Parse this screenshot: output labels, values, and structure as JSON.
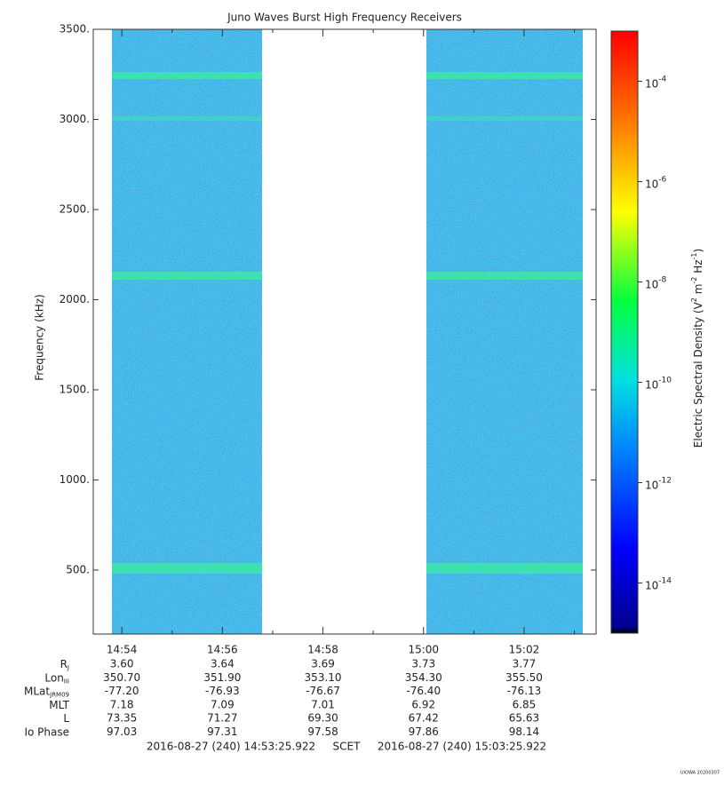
{
  "chart_data": {
    "type": "spectrogram",
    "title": "Juno Waves Burst High Frequency Receivers",
    "y_label": "Frequency (kHz)",
    "ylim": [
      145,
      3500
    ],
    "yticks": [
      {
        "value": 500,
        "label": "500."
      },
      {
        "value": 1000,
        "label": "1000."
      },
      {
        "value": 1500,
        "label": "1500."
      },
      {
        "value": 2000,
        "label": "2000."
      },
      {
        "value": 2500,
        "label": "2500."
      },
      {
        "value": 3000,
        "label": "3000."
      },
      {
        "value": 3500,
        "label": "3500."
      }
    ],
    "xticks": [
      "14:54",
      "14:56",
      "14:58",
      "15:00",
      "15:02"
    ],
    "colorbar": {
      "label": [
        "Electric Spectral Density (V",
        "2",
        " m",
        "-2",
        " Hz",
        "-1",
        ")"
      ],
      "base": "10",
      "clim": [
        -15,
        -3
      ],
      "ticks": [
        -14,
        -12,
        -10,
        -8,
        -6,
        -4
      ]
    },
    "ephemeris": [
      {
        "label": "R",
        "sub": "J",
        "values": [
          "3.60",
          "3.64",
          "3.69",
          "3.73",
          "3.77"
        ]
      },
      {
        "label": "Lon",
        "sub": "III",
        "values": [
          "350.70",
          "351.90",
          "353.10",
          "354.30",
          "355.50"
        ]
      },
      {
        "label": "MLat",
        "sub": "JRM09",
        "values": [
          "-77.20",
          "-76.93",
          "-76.67",
          "-76.40",
          "-76.13"
        ]
      },
      {
        "label": "MLT",
        "values": [
          "7.18",
          "7.09",
          "7.01",
          "6.92",
          "6.85"
        ]
      },
      {
        "label": "L",
        "values": [
          "73.35",
          "71.27",
          "69.30",
          "67.42",
          "65.63"
        ]
      },
      {
        "label": "Io Phase",
        "values": [
          "97.03",
          "97.31",
          "97.58",
          "97.86",
          "98.14"
        ]
      }
    ],
    "start": "2016-08-27 (240) 14:53:25.922",
    "frame": "SCET",
    "end": "2016-08-27 (240) 15:03:25.922",
    "stamp": "UIOWA 20200307"
  }
}
